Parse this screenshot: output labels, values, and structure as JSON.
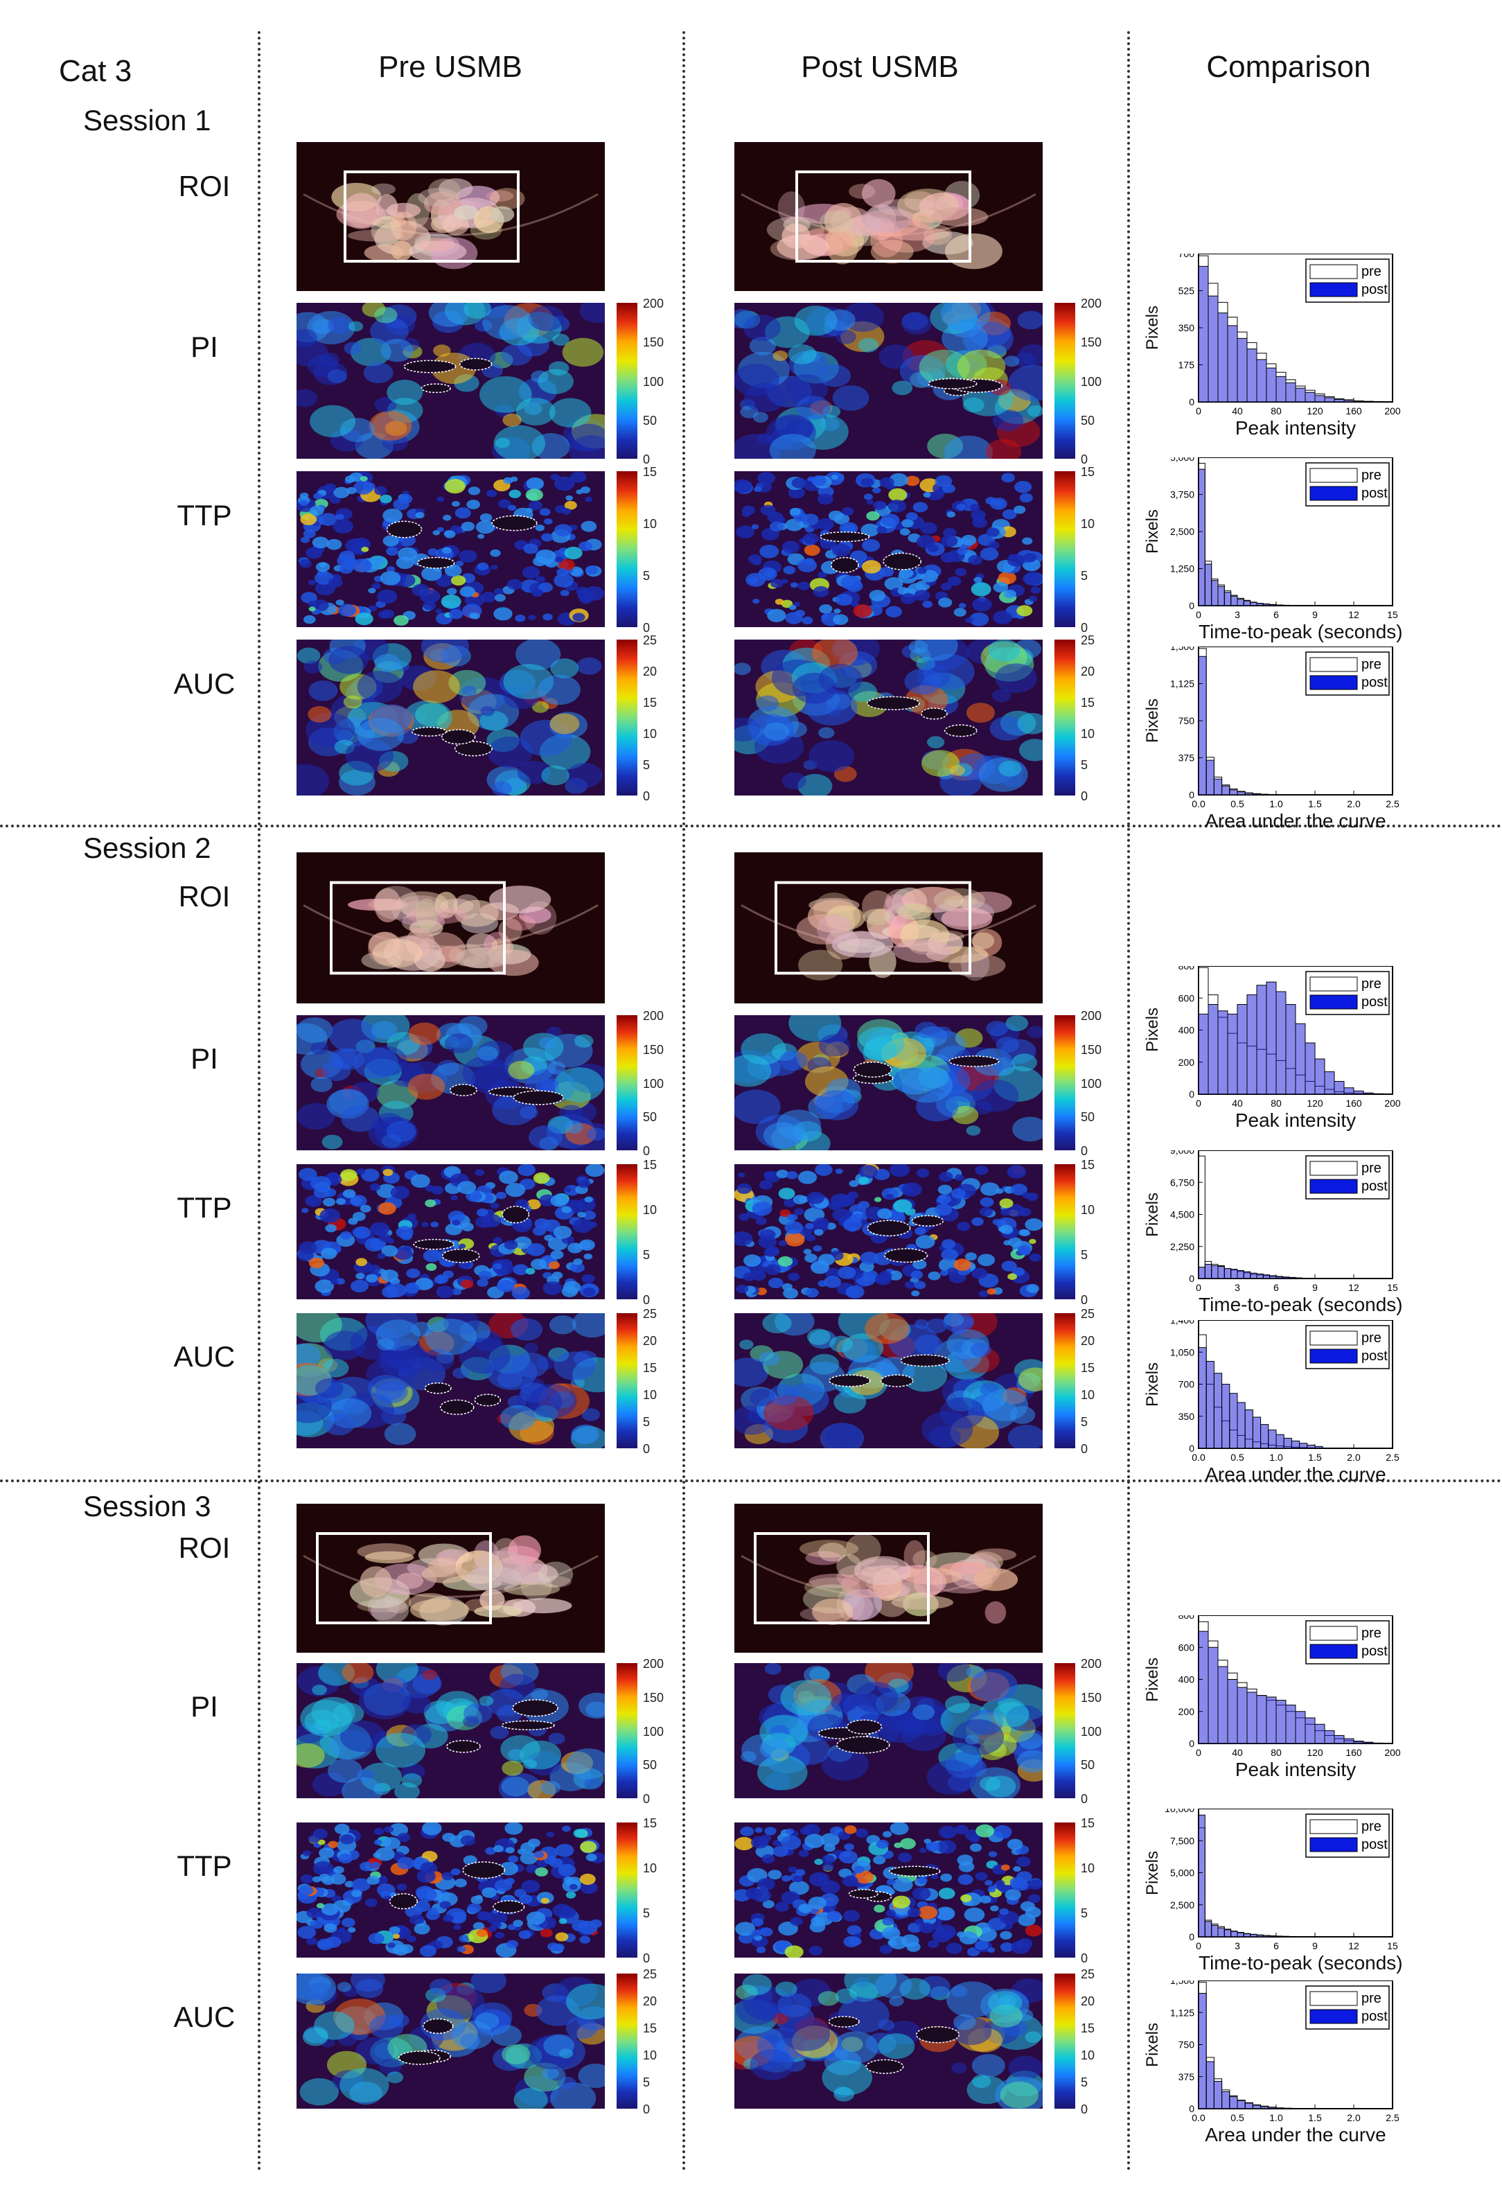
{
  "header": {
    "subject": "Cat 3",
    "col_pre": "Pre USMB",
    "col_post": "Post USMB",
    "col_comparison": "Comparison"
  },
  "rows": {
    "roi": "ROI",
    "pi": "PI",
    "ttp": "TTP",
    "auc": "AUC"
  },
  "sessions": [
    {
      "title": "Session 1"
    },
    {
      "title": "Session 2"
    },
    {
      "title": "Session 3"
    }
  ],
  "colorbars": {
    "pi": [
      "200",
      "150",
      "100",
      "50",
      "0"
    ],
    "ttp": [
      "15",
      "10",
      "5",
      "0"
    ],
    "auc": [
      "25",
      "20",
      "15",
      "10",
      "5",
      "0"
    ]
  },
  "legend": {
    "pre": "pre",
    "post": "post"
  },
  "hist_labels": {
    "y": "Pixels",
    "pi_x": "Peak intensity",
    "ttp_x": "Time-to-peak (seconds)",
    "auc_x": "Area under the curve"
  },
  "chart_data": [
    {
      "type": "bar",
      "title": "",
      "session": "Session 1",
      "xlabel": "Peak intensity",
      "ylabel": "Pixels",
      "xlim": [
        0,
        200
      ],
      "ylim": [
        0,
        700
      ],
      "x": [
        5,
        15,
        25,
        35,
        45,
        55,
        65,
        75,
        85,
        95,
        105,
        115,
        125,
        135,
        145,
        155,
        165,
        175,
        185,
        195
      ],
      "series": [
        {
          "name": "pre",
          "values": [
            690,
            560,
            470,
            400,
            330,
            280,
            230,
            180,
            140,
            105,
            75,
            55,
            38,
            25,
            15,
            10,
            5,
            3,
            2,
            1
          ]
        },
        {
          "name": "post",
          "values": [
            640,
            500,
            420,
            360,
            300,
            250,
            200,
            160,
            120,
            90,
            65,
            45,
            30,
            20,
            12,
            8,
            4,
            2,
            1,
            0
          ]
        }
      ]
    },
    {
      "type": "bar",
      "title": "",
      "session": "Session 1",
      "xlabel": "Time-to-peak (seconds)",
      "ylabel": "Pixels",
      "xlim": [
        0,
        15
      ],
      "ylim": [
        0,
        5000
      ],
      "x": [
        0.25,
        0.75,
        1.25,
        1.75,
        2.25,
        2.75,
        3.25,
        3.75,
        4.25,
        4.75,
        5.25,
        5.75,
        6.25,
        6.75,
        7.25,
        7.75
      ],
      "series": [
        {
          "name": "pre",
          "values": [
            4800,
            1500,
            900,
            700,
            500,
            350,
            250,
            180,
            120,
            80,
            60,
            40,
            25,
            15,
            10,
            5
          ]
        },
        {
          "name": "post",
          "values": [
            4600,
            1400,
            850,
            650,
            450,
            320,
            220,
            160,
            110,
            70,
            50,
            35,
            20,
            12,
            8,
            4
          ]
        }
      ]
    },
    {
      "type": "bar",
      "title": "",
      "session": "Session 1",
      "xlabel": "Area under the curve",
      "ylabel": "Pixels",
      "xlim": [
        0,
        2.5
      ],
      "ylim": [
        0,
        1500
      ],
      "x": [
        0.05,
        0.15,
        0.25,
        0.35,
        0.45,
        0.55,
        0.65,
        0.75,
        0.85,
        0.95
      ],
      "series": [
        {
          "name": "pre",
          "values": [
            1480,
            380,
            180,
            100,
            60,
            35,
            20,
            12,
            6,
            3
          ]
        },
        {
          "name": "post",
          "values": [
            1400,
            350,
            160,
            90,
            50,
            30,
            18,
            10,
            5,
            2
          ]
        }
      ]
    },
    {
      "type": "bar",
      "title": "",
      "session": "Session 2",
      "xlabel": "Peak intensity",
      "ylabel": "Pixels",
      "xlim": [
        0,
        200
      ],
      "ylim": [
        0,
        800
      ],
      "x": [
        5,
        15,
        25,
        35,
        45,
        55,
        65,
        75,
        85,
        95,
        105,
        115,
        125,
        135,
        145,
        155,
        165,
        175,
        185,
        195
      ],
      "series": [
        {
          "name": "pre",
          "values": [
            790,
            620,
            480,
            380,
            320,
            300,
            280,
            250,
            210,
            160,
            120,
            80,
            50,
            30,
            15,
            8,
            4,
            2,
            1,
            0
          ]
        },
        {
          "name": "post",
          "values": [
            500,
            560,
            520,
            500,
            560,
            620,
            680,
            700,
            640,
            560,
            440,
            320,
            220,
            140,
            80,
            40,
            20,
            8,
            3,
            1
          ]
        }
      ]
    },
    {
      "type": "bar",
      "title": "",
      "session": "Session 2",
      "xlabel": "Time-to-peak (seconds)",
      "ylabel": "Pixels",
      "xlim": [
        0,
        15
      ],
      "ylim": [
        0,
        9000
      ],
      "x": [
        0.25,
        0.75,
        1.25,
        1.75,
        2.25,
        2.75,
        3.25,
        3.75,
        4.25,
        4.75,
        5.25,
        5.75,
        6.25,
        6.75,
        7.25,
        7.75
      ],
      "series": [
        {
          "name": "pre",
          "values": [
            8600,
            1200,
            1000,
            900,
            700,
            600,
            500,
            400,
            300,
            250,
            200,
            150,
            100,
            80,
            50,
            30
          ]
        },
        {
          "name": "post",
          "values": [
            800,
            1000,
            900,
            850,
            700,
            650,
            560,
            480,
            380,
            320,
            260,
            200,
            150,
            110,
            80,
            50
          ]
        }
      ]
    },
    {
      "type": "bar",
      "title": "",
      "session": "Session 2",
      "xlabel": "Area under the curve",
      "ylabel": "Pixels",
      "xlim": [
        0,
        2.5
      ],
      "ylim": [
        0,
        1400
      ],
      "x": [
        0.05,
        0.15,
        0.25,
        0.35,
        0.45,
        0.55,
        0.65,
        0.75,
        0.85,
        0.95,
        1.05,
        1.15,
        1.25,
        1.35,
        1.45,
        1.55
      ],
      "series": [
        {
          "name": "pre",
          "values": [
            1240,
            700,
            450,
            300,
            200,
            140,
            100,
            70,
            50,
            35,
            25,
            18,
            12,
            8,
            5,
            3
          ]
        },
        {
          "name": "post",
          "values": [
            1100,
            950,
            820,
            700,
            600,
            500,
            420,
            340,
            260,
            200,
            150,
            110,
            80,
            55,
            35,
            20
          ]
        }
      ]
    },
    {
      "type": "bar",
      "title": "",
      "session": "Session 3",
      "xlabel": "Peak intensity",
      "ylabel": "Pixels",
      "xlim": [
        0,
        200
      ],
      "ylim": [
        0,
        800
      ],
      "x": [
        5,
        15,
        25,
        35,
        45,
        55,
        65,
        75,
        85,
        95,
        105,
        115,
        125,
        135,
        145,
        155,
        165,
        175,
        185,
        195
      ],
      "series": [
        {
          "name": "pre",
          "values": [
            760,
            640,
            520,
            440,
            380,
            340,
            300,
            270,
            240,
            200,
            160,
            120,
            80,
            50,
            30,
            18,
            10,
            5,
            2,
            1
          ]
        },
        {
          "name": "post",
          "values": [
            700,
            600,
            480,
            400,
            350,
            320,
            300,
            290,
            270,
            240,
            200,
            160,
            120,
            80,
            50,
            30,
            15,
            8,
            3,
            1
          ]
        }
      ]
    },
    {
      "type": "bar",
      "title": "",
      "session": "Session 3",
      "xlabel": "Time-to-peak (seconds)",
      "ylabel": "Pixels",
      "xlim": [
        0,
        15
      ],
      "ylim": [
        0,
        10000
      ],
      "x": [
        0.25,
        0.75,
        1.25,
        1.75,
        2.25,
        2.75,
        3.25,
        3.75,
        4.25,
        4.75,
        5.25,
        5.75,
        6.25,
        6.75,
        7.25,
        7.75
      ],
      "series": [
        {
          "name": "pre",
          "values": [
            8500,
            1300,
            1000,
            800,
            600,
            450,
            350,
            260,
            200,
            150,
            110,
            80,
            60,
            40,
            25,
            15
          ]
        },
        {
          "name": "post",
          "values": [
            9500,
            1200,
            900,
            700,
            550,
            420,
            320,
            240,
            180,
            130,
            100,
            70,
            50,
            35,
            20,
            12
          ]
        }
      ]
    },
    {
      "type": "bar",
      "title": "",
      "session": "Session 3",
      "xlabel": "Area under the curve",
      "ylabel": "Pixels",
      "xlim": [
        0,
        2.5
      ],
      "ylim": [
        0,
        1500
      ],
      "x": [
        0.05,
        0.15,
        0.25,
        0.35,
        0.45,
        0.55,
        0.65,
        0.75,
        0.85,
        0.95,
        1.05,
        1.15,
        1.25
      ],
      "series": [
        {
          "name": "pre",
          "values": [
            1480,
            600,
            350,
            220,
            150,
            100,
            70,
            45,
            30,
            18,
            10,
            6,
            3
          ]
        },
        {
          "name": "post",
          "values": [
            1350,
            550,
            320,
            200,
            140,
            95,
            65,
            40,
            25,
            15,
            8,
            5,
            2
          ]
        }
      ]
    }
  ]
}
